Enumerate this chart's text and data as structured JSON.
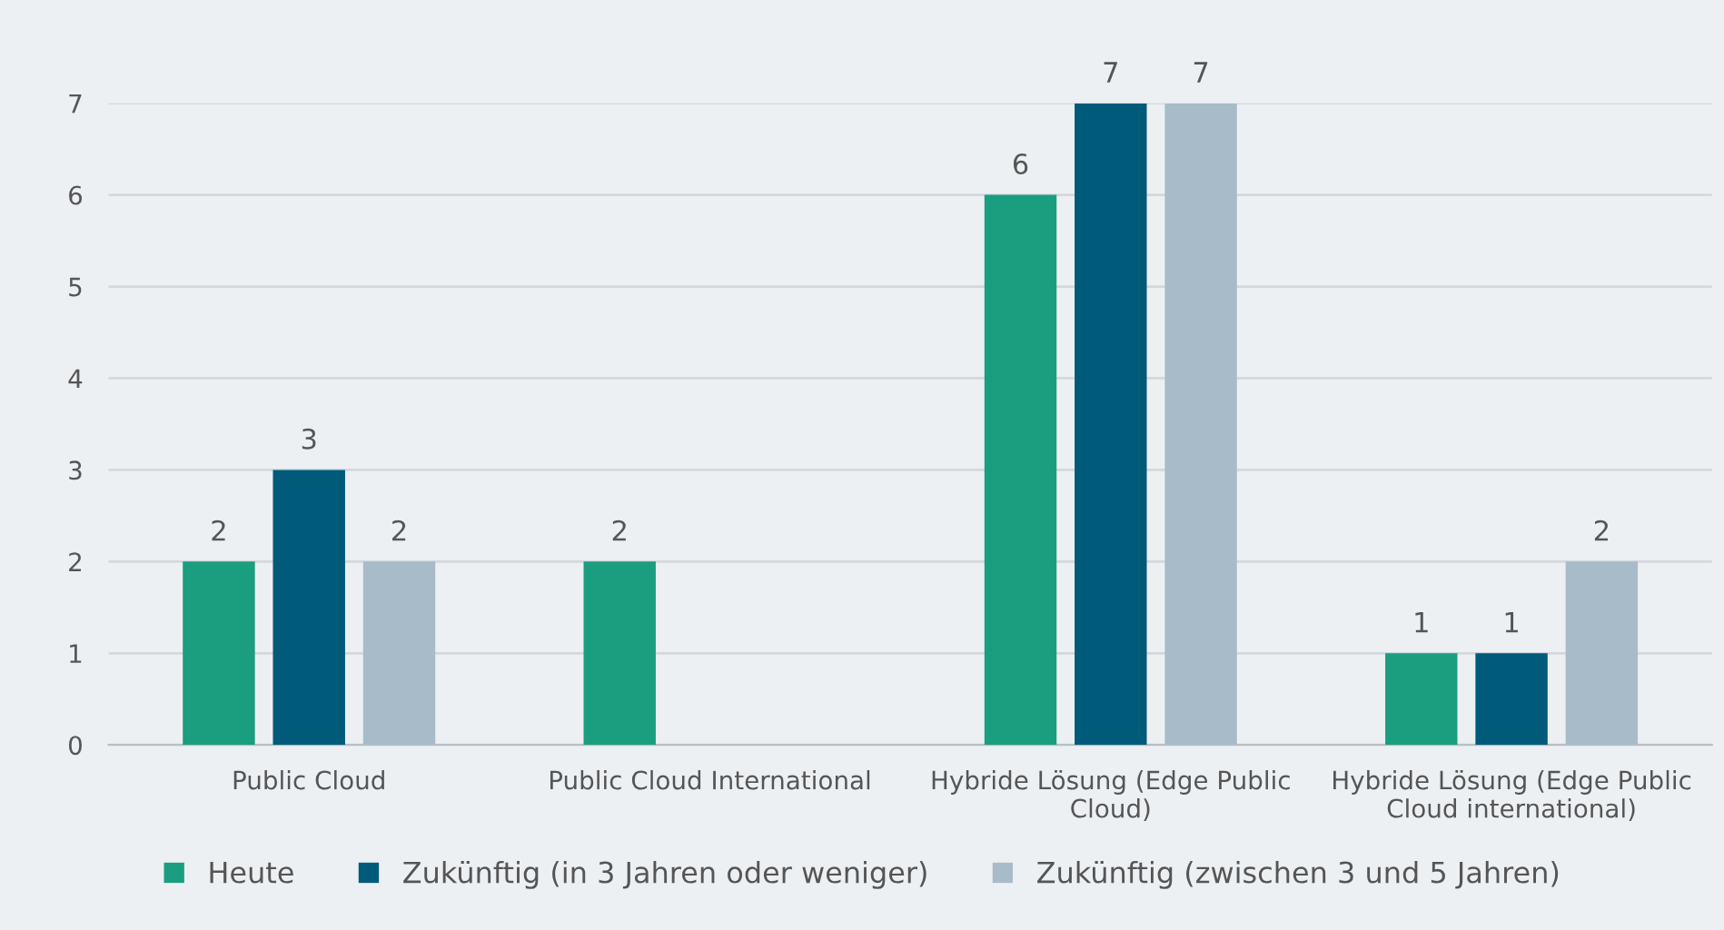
{
  "chart_data": {
    "type": "bar",
    "categories": [
      "Public Cloud",
      "Public Cloud International",
      "Hybride Lösung (Edge Public\nCloud)",
      "Hybride Lösung (Edge Public\nCloud international)"
    ],
    "series": [
      {
        "name": "Heute",
        "color": "#1a9e7f",
        "values": [
          2,
          2,
          6,
          1
        ]
      },
      {
        "name": "Zukünftig (in 3 Jahren oder weniger)",
        "color": "#005a7a",
        "values": [
          3,
          null,
          7,
          1
        ]
      },
      {
        "name": "Zukünftig (zwischen 3 und 5 Jahren)",
        "color": "#a7bcc8",
        "values": [
          2,
          null,
          7,
          2
        ]
      }
    ],
    "ylim": [
      0,
      7
    ],
    "yticks": [
      0,
      1,
      2,
      3,
      4,
      5,
      6,
      7
    ],
    "grid": "y",
    "legend": "bottom",
    "data_labels": true
  }
}
